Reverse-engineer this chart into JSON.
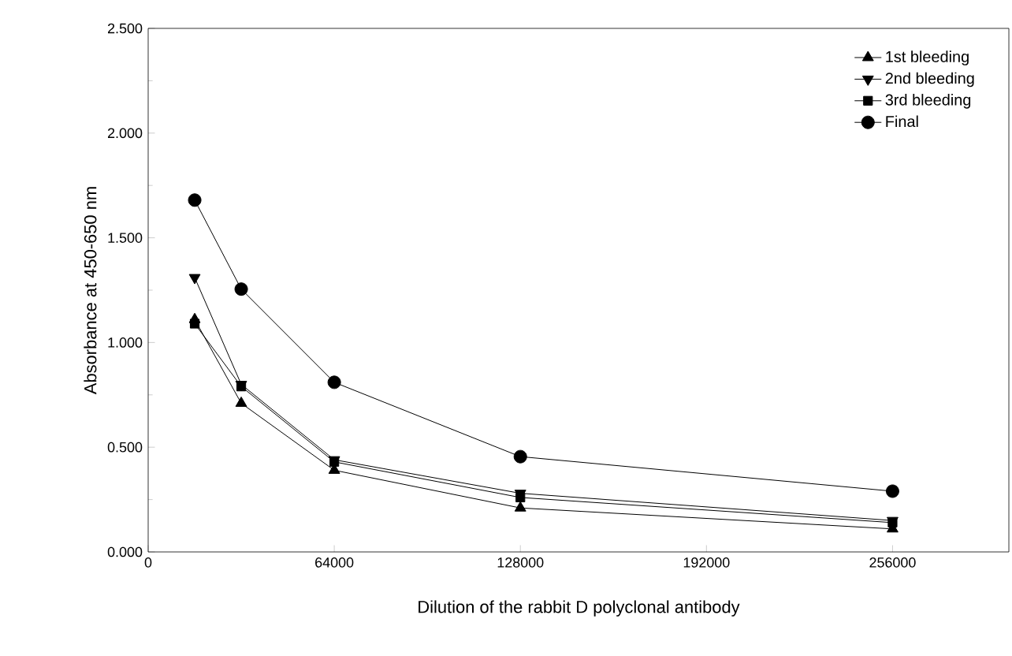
{
  "chart_data": {
    "type": "line",
    "xlabel": "Dilution of the rabbit D polyclonal antibody",
    "ylabel": "Absorbance at 450-650 nm",
    "x": [
      16000,
      32000,
      64000,
      128000,
      256000
    ],
    "series": [
      {
        "name": "1st  bleeding",
        "color": "#000000",
        "marker": "triangle",
        "values": [
          1.11,
          0.71,
          0.39,
          0.21,
          0.11
        ]
      },
      {
        "name": "2nd bleeding",
        "color": "#000000",
        "marker": "triangle-down",
        "values": [
          1.31,
          0.8,
          0.44,
          0.28,
          0.15
        ]
      },
      {
        "name": "3rd bleeding",
        "color": "#000000",
        "marker": "square",
        "values": [
          1.09,
          0.79,
          0.43,
          0.26,
          0.14
        ]
      },
      {
        "name": "Final",
        "color": "#000000",
        "marker": "circle",
        "values": [
          1.68,
          1.255,
          0.81,
          0.455,
          0.29
        ]
      }
    ],
    "xlim": [
      0,
      296000
    ],
    "ylim": [
      0,
      2.5
    ],
    "xticks": [
      0,
      64000,
      128000,
      192000,
      256000
    ],
    "yticks": [
      {
        "value": 0,
        "label": "0.000"
      },
      {
        "value": 0.5,
        "label": "0.500"
      },
      {
        "value": 1,
        "label": "1.000"
      },
      {
        "value": 1.5,
        "label": "1.500"
      },
      {
        "value": 2,
        "label": "2.000"
      },
      {
        "value": 2.5,
        "label": "2.500"
      }
    ],
    "legend": "top right",
    "grid": false,
    "line_style": "solid"
  }
}
